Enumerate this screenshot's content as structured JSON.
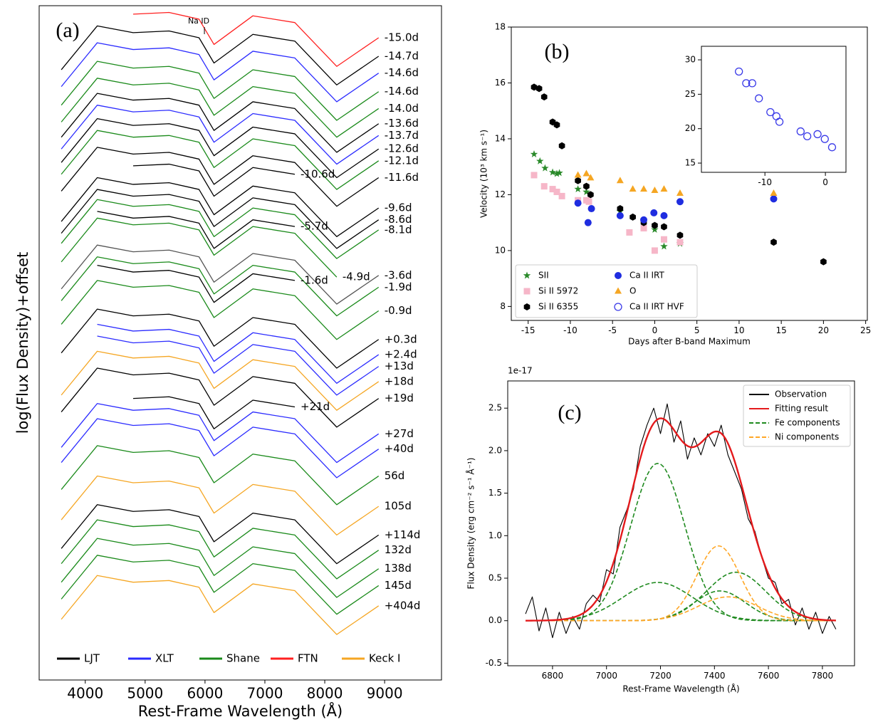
{
  "chart_data": [
    {
      "type": "line",
      "panel": "(a)",
      "xlabel": "Rest-Frame Wavelength (Å)",
      "ylabel": "log(Flux Density)+offset",
      "xlim": [
        3230,
        9950
      ],
      "ylim": [
        0,
        40
      ],
      "xticks": [
        4000,
        5000,
        6000,
        7000,
        8000,
        9000
      ],
      "x": [
        3600,
        4200,
        4800,
        5400,
        5900,
        6150,
        6800,
        7500,
        8200,
        8900
      ],
      "direct_labels": true,
      "annotations": [
        {
          "text": "Na ID",
          "x": 5990
        }
      ],
      "legend_loc": "lower center",
      "legend": [
        {
          "name": "LJT",
          "color": "#000000"
        },
        {
          "name": "XLT",
          "color": "#2b2bff"
        },
        {
          "name": "Shane",
          "color": "#1a8a1a"
        },
        {
          "name": "FTN",
          "color": "#ff2020"
        },
        {
          "name": "Keck I",
          "color": "#f5a623"
        }
      ],
      "series": [
        {
          "name": "-15.0d",
          "color": "#ff2020",
          "values": [
            null,
            null,
            39.5,
            39.6,
            39.2,
            37.7,
            39.4,
            39.0,
            36.4,
            38.1
          ]
        },
        {
          "name": "-14.7d",
          "color": "#000000",
          "values": [
            36.2,
            38.8,
            38.4,
            38.5,
            38.1,
            36.6,
            38.3,
            37.9,
            35.3,
            37.0
          ]
        },
        {
          "name": "-14.6d",
          "color": "#2b2bff",
          "values": [
            35.2,
            37.8,
            37.4,
            37.5,
            37.1,
            35.6,
            37.3,
            36.9,
            34.3,
            36.0
          ]
        },
        {
          "name": "-14.6d",
          "color": "#1a8a1a",
          "values": [
            34.1,
            36.7,
            36.3,
            36.4,
            36.0,
            34.5,
            36.2,
            35.8,
            33.2,
            34.9
          ]
        },
        {
          "name": "-14.0d",
          "color": "#1a8a1a",
          "values": [
            33.1,
            35.7,
            35.3,
            35.4,
            35.0,
            33.5,
            35.2,
            34.8,
            32.2,
            33.9
          ]
        },
        {
          "name": "-13.6d",
          "color": "#000000",
          "values": [
            32.2,
            34.8,
            34.4,
            34.5,
            34.1,
            32.6,
            34.3,
            33.9,
            31.3,
            33.0
          ]
        },
        {
          "name": "-13.7d",
          "color": "#2b2bff",
          "values": [
            31.5,
            34.1,
            33.7,
            33.8,
            33.4,
            31.9,
            33.6,
            33.2,
            30.6,
            32.3
          ]
        },
        {
          "name": "-12.6d",
          "color": "#000000",
          "values": [
            30.7,
            33.3,
            32.9,
            33.0,
            32.6,
            31.1,
            32.8,
            32.4,
            29.8,
            31.5
          ]
        },
        {
          "name": "-12.1d",
          "color": "#1a8a1a",
          "values": [
            30.0,
            32.6,
            32.2,
            32.3,
            31.9,
            30.4,
            32.1,
            31.7,
            29.1,
            30.8
          ]
        },
        {
          "name": "-11.6d",
          "color": "#000000",
          "values": [
            29.0,
            31.6,
            31.2,
            31.3,
            30.9,
            29.4,
            31.1,
            30.7,
            28.1,
            29.8
          ]
        },
        {
          "name": "-10.6d",
          "color": "#000000",
          "values": [
            null,
            null,
            30.5,
            30.6,
            30.2,
            28.7,
            30.4,
            30.0,
            null,
            null
          ]
        },
        {
          "name": "-9.6d",
          "color": "#000000",
          "values": [
            27.2,
            29.8,
            29.4,
            29.5,
            29.1,
            27.6,
            29.3,
            28.9,
            26.3,
            28.0
          ]
        },
        {
          "name": "-8.6d",
          "color": "#000000",
          "values": [
            26.5,
            29.1,
            28.7,
            28.8,
            28.4,
            26.9,
            28.6,
            28.2,
            25.6,
            27.3
          ]
        },
        {
          "name": "-8.1d",
          "color": "#1a8a1a",
          "values": [
            25.9,
            28.5,
            28.1,
            28.2,
            27.8,
            26.3,
            28.0,
            27.6,
            25.0,
            26.7
          ]
        },
        {
          "name": "-5.7d",
          "color": "#000000",
          "values": [
            null,
            27.8,
            27.4,
            27.5,
            27.1,
            25.6,
            27.3,
            26.9,
            null,
            null
          ]
        },
        {
          "name": "-4.9d",
          "color": "#1a8a1a",
          "values": [
            24.8,
            27.4,
            27.0,
            27.1,
            26.7,
            25.2,
            26.9,
            26.5,
            23.9,
            null
          ]
        },
        {
          "name": "-3.6d",
          "color": "#555555",
          "values": [
            23.2,
            25.8,
            25.4,
            25.5,
            25.1,
            23.6,
            25.3,
            24.9,
            22.3,
            24.0
          ]
        },
        {
          "name": "-1.9d",
          "color": "#1a8a1a",
          "values": [
            22.5,
            25.1,
            24.7,
            24.8,
            24.4,
            22.9,
            24.6,
            24.2,
            21.6,
            23.3
          ]
        },
        {
          "name": "-1.6d",
          "color": "#000000",
          "values": [
            null,
            24.6,
            24.2,
            24.3,
            23.9,
            22.4,
            24.1,
            23.7,
            null,
            null
          ]
        },
        {
          "name": "-0.9d",
          "color": "#1a8a1a",
          "values": [
            21.1,
            23.7,
            23.3,
            23.4,
            23.0,
            21.5,
            23.2,
            22.8,
            20.2,
            21.9
          ]
        },
        {
          "name": "+0.3d",
          "color": "#000000",
          "values": [
            19.4,
            22.0,
            21.6,
            21.7,
            21.3,
            19.8,
            21.5,
            21.1,
            18.5,
            20.2
          ]
        },
        {
          "name": "+2.4d",
          "color": "#2b2bff",
          "values": [
            null,
            21.1,
            20.7,
            20.8,
            20.4,
            18.9,
            20.6,
            20.2,
            17.6,
            19.3
          ]
        },
        {
          "name": "+13d",
          "color": "#2b2bff",
          "values": [
            null,
            20.4,
            20.0,
            20.1,
            19.7,
            18.2,
            19.9,
            19.5,
            16.9,
            18.6
          ]
        },
        {
          "name": "+18d",
          "color": "#f5a623",
          "values": [
            16.9,
            19.5,
            19.1,
            19.2,
            18.8,
            17.3,
            19.0,
            18.6,
            16.0,
            17.7
          ]
        },
        {
          "name": "+19d",
          "color": "#000000",
          "values": [
            15.9,
            18.5,
            18.1,
            18.2,
            17.8,
            16.3,
            18.0,
            17.6,
            15.0,
            16.7
          ]
        },
        {
          "name": "+21d",
          "color": "#000000",
          "values": [
            null,
            null,
            16.7,
            16.8,
            16.4,
            14.9,
            16.6,
            16.2,
            null,
            null
          ]
        },
        {
          "name": "+27d",
          "color": "#2b2bff",
          "values": [
            13.8,
            16.4,
            16.0,
            16.1,
            15.7,
            14.2,
            15.9,
            15.5,
            12.9,
            14.6
          ]
        },
        {
          "name": "+40d",
          "color": "#2b2bff",
          "values": [
            12.9,
            15.5,
            15.1,
            15.2,
            14.8,
            13.3,
            15.0,
            14.6,
            12.0,
            13.7
          ]
        },
        {
          "name": "56d",
          "color": "#1a8a1a",
          "values": [
            11.3,
            13.9,
            13.5,
            13.6,
            13.2,
            11.7,
            13.4,
            13.0,
            10.4,
            12.1
          ]
        },
        {
          "name": "105d",
          "color": "#f5a623",
          "values": [
            9.5,
            12.1,
            11.7,
            11.8,
            11.4,
            9.9,
            11.6,
            11.2,
            8.6,
            10.3
          ]
        },
        {
          "name": "+114d",
          "color": "#000000",
          "values": [
            7.8,
            10.4,
            10.0,
            10.1,
            9.7,
            8.2,
            9.9,
            9.5,
            6.9,
            8.6
          ]
        },
        {
          "name": "132d",
          "color": "#1a8a1a",
          "values": [
            6.9,
            9.5,
            9.1,
            9.2,
            8.8,
            7.3,
            9.0,
            8.6,
            6.0,
            7.7
          ]
        },
        {
          "name": "138d",
          "color": "#1a8a1a",
          "values": [
            5.8,
            8.4,
            8.0,
            8.1,
            7.7,
            6.2,
            7.9,
            7.5,
            4.9,
            6.6
          ]
        },
        {
          "name": "145d",
          "color": "#1a8a1a",
          "values": [
            4.8,
            7.4,
            7.0,
            7.1,
            6.7,
            5.2,
            6.9,
            6.5,
            3.9,
            5.6
          ]
        },
        {
          "name": "+404d",
          "color": "#f5a623",
          "values": [
            3.6,
            6.2,
            5.8,
            5.9,
            5.5,
            4.0,
            5.7,
            5.3,
            2.7,
            4.4
          ]
        }
      ]
    },
    {
      "type": "scatter",
      "panel": "(b)",
      "xlabel": "Days after B-band Maximum",
      "ylabel": "Velocity (10³ km s⁻¹)",
      "xlim": [
        -17,
        25.2
      ],
      "ylim": [
        7.5,
        18
      ],
      "xticks": [
        -15,
        -10,
        -5,
        0,
        5,
        10,
        15,
        20,
        25
      ],
      "yticks": [
        8,
        10,
        12,
        14,
        16,
        18
      ],
      "legend_loc": "lower left",
      "legend_columns": 2,
      "inset": {
        "xlim": [
          -20.5,
          3.4
        ],
        "ylim": [
          13.66,
          31.97
        ],
        "xticks": [
          -10,
          0
        ],
        "yticks": [
          15,
          20,
          25,
          30
        ]
      },
      "series": [
        {
          "name": "SII",
          "color": "#2a8a2a",
          "marker": "star",
          "x": [
            -14.3,
            -13.6,
            -13,
            -12.1,
            -11.6,
            -11.3,
            -9.1,
            -8.1,
            -4.1,
            0,
            1.1,
            3
          ],
          "values": [
            13.45,
            13.2,
            12.95,
            12.8,
            12.75,
            12.78,
            12.2,
            12.1,
            11.4,
            10.75,
            10.15,
            10.25
          ]
        },
        {
          "name": "Si II 5972",
          "color": "#f6b6c8",
          "marker": "square",
          "x": [
            -14.3,
            -13.1,
            -12.1,
            -11.6,
            -11,
            -9.1,
            -8.1,
            -7.8,
            -3,
            -1.3,
            0,
            1.1,
            3
          ],
          "values": [
            12.7,
            12.3,
            12.2,
            12.1,
            11.95,
            11.8,
            11.8,
            11.75,
            10.65,
            10.8,
            10.0,
            10.4,
            10.3
          ]
        },
        {
          "name": "Si II 6355",
          "color": "#000000",
          "marker": "hexagon",
          "x": [
            -14.3,
            -13.7,
            -13.1,
            -12.1,
            -11.6,
            -11,
            -9.1,
            -8.1,
            -7.6,
            -4.1,
            -2.6,
            -1.3,
            0,
            1.1,
            3,
            14.1,
            20
          ],
          "values": [
            15.85,
            15.8,
            15.5,
            14.6,
            14.5,
            13.75,
            12.5,
            12.3,
            12.0,
            11.5,
            11.2,
            11.0,
            10.9,
            10.85,
            10.55,
            10.3,
            9.6
          ]
        },
        {
          "name": "Ca II IRT",
          "color": "#1f2de0",
          "marker": "circle",
          "x": [
            -9.1,
            -7.9,
            -7.5,
            -4.1,
            -1.3,
            -0.1,
            1.1,
            3,
            14.1
          ],
          "values": [
            11.7,
            11.0,
            11.5,
            11.25,
            11.1,
            11.35,
            11.25,
            11.75,
            11.85
          ]
        },
        {
          "name": "O",
          "color": "#f5a623",
          "marker": "triangle",
          "x": [
            -9.1,
            -8.1,
            -7.6,
            -4.1,
            -2.6,
            -1.3,
            0,
            1.1,
            3,
            14.1
          ],
          "values": [
            12.7,
            12.75,
            12.6,
            12.5,
            12.2,
            12.2,
            12.15,
            12.2,
            12.05,
            12.05
          ]
        },
        {
          "name": "Ca II IRT HVF",
          "color": "#3a3ae8",
          "marker": "open-circle",
          "axis": "inset",
          "x": [
            -14.3,
            -13.1,
            -12.1,
            -11,
            -9.1,
            -8.1,
            -7.6,
            -4.1,
            -3,
            -1.3,
            -0.1,
            1.1
          ],
          "values": [
            28.3,
            26.6,
            26.6,
            24.4,
            22.4,
            21.8,
            21.0,
            19.6,
            18.9,
            19.2,
            18.5,
            17.3
          ]
        }
      ]
    },
    {
      "type": "line",
      "panel": "(c)",
      "offset_label": "1e-17",
      "xlabel": "Rest-Frame Wavelength (Å)",
      "ylabel": "Flux Density (erg cm⁻² s⁻¹ Å⁻¹)",
      "xlim": [
        6634,
        7919
      ],
      "ylim": [
        -0.53,
        2.82
      ],
      "xticks": [
        6800,
        7000,
        7200,
        7400,
        7600,
        7800
      ],
      "yticks": [
        -0.5,
        {
          "value": 0,
          "label": "0.0"
        },
        0.5,
        {
          "value": 1,
          "label": "1.0"
        },
        1.5,
        {
          "value": 2,
          "label": "2.0"
        },
        2.5
      ],
      "legend_loc": "upper right",
      "series": [
        {
          "name": "Observation",
          "color": "#000000",
          "x": [
            6700,
            6725,
            6750,
            6775,
            6800,
            6825,
            6850,
            6875,
            6900,
            6925,
            6950,
            6975,
            7000,
            7025,
            7050,
            7075,
            7100,
            7125,
            7150,
            7175,
            7200,
            7225,
            7250,
            7275,
            7300,
            7325,
            7350,
            7375,
            7400,
            7425,
            7450,
            7475,
            7500,
            7525,
            7550,
            7575,
            7600,
            7625,
            7650,
            7675,
            7700,
            7725,
            7750,
            7775,
            7800,
            7825,
            7850
          ],
          "values": [
            0.08,
            0.28,
            -0.12,
            0.15,
            -0.2,
            0.1,
            -0.15,
            0.05,
            -0.1,
            0.2,
            0.3,
            0.22,
            0.6,
            0.55,
            1.1,
            1.3,
            1.55,
            2.05,
            2.3,
            2.5,
            2.2,
            2.55,
            2.1,
            2.35,
            1.9,
            2.15,
            1.95,
            2.2,
            2.05,
            2.3,
            1.95,
            1.75,
            1.55,
            1.2,
            1.05,
            0.75,
            0.5,
            0.45,
            0.2,
            0.25,
            -0.05,
            0.15,
            -0.1,
            0.1,
            -0.15,
            0.05,
            -0.1
          ]
        },
        {
          "name": "Fitting result",
          "color": "#e41a1c"
        },
        {
          "name": "Fe components",
          "color": "#1f8a1f",
          "dash": true,
          "peaks": [
            {
              "center": 7190,
              "amplitude": 1.85,
              "sigma": 100
            },
            {
              "center": 7190,
              "amplitude": 0.45,
              "sigma": 130
            },
            {
              "center": 7420,
              "amplitude": 0.35,
              "sigma": 95
            },
            {
              "center": 7480,
              "amplitude": 0.57,
              "sigma": 110
            }
          ]
        },
        {
          "name": "Ni components",
          "color": "#ffa726",
          "dash": true,
          "peaks": [
            {
              "center": 7415,
              "amplitude": 0.88,
              "sigma": 80
            },
            {
              "center": 7450,
              "amplitude": 0.28,
              "sigma": 110
            }
          ]
        }
      ]
    }
  ]
}
